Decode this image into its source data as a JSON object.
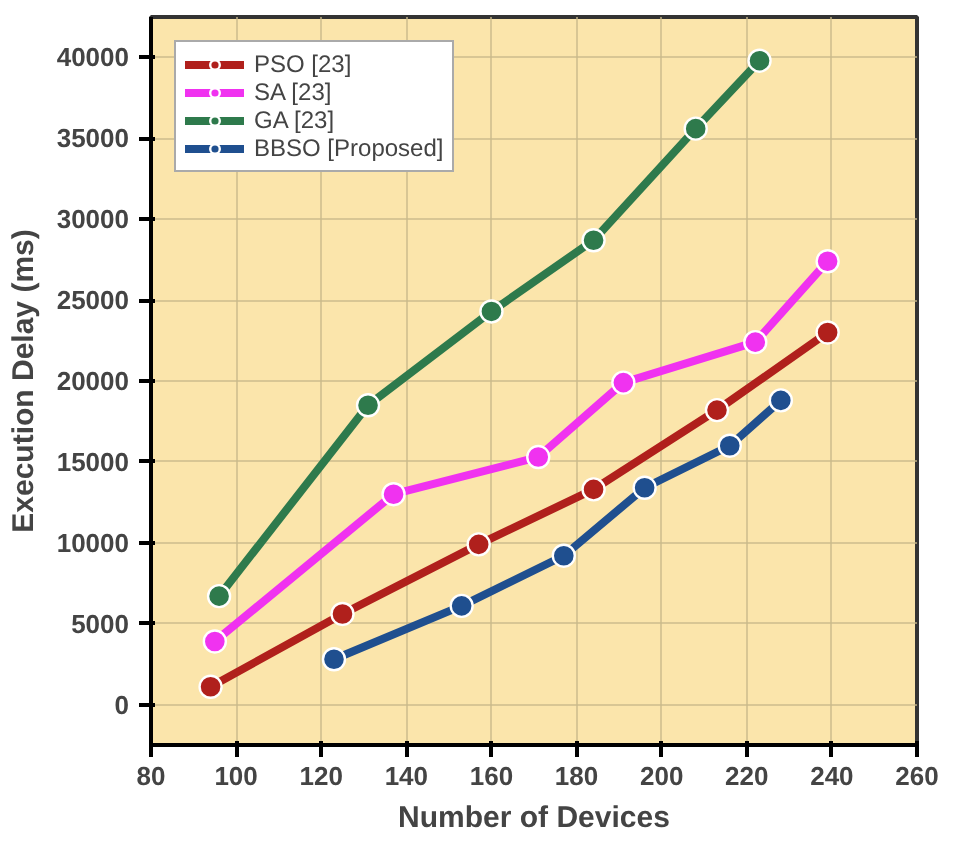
{
  "chart_data": {
    "type": "line",
    "xlabel": "Number of Devices",
    "ylabel": "Execution Delay (ms)",
    "xlim": [
      80,
      260
    ],
    "xticks": [
      80,
      100,
      120,
      140,
      160,
      180,
      200,
      220,
      240,
      260
    ],
    "ylim": [
      -2500,
      42500
    ],
    "yticks": [
      0,
      5000,
      10000,
      15000,
      20000,
      25000,
      30000,
      35000,
      40000
    ],
    "grid": true,
    "legend": "top left",
    "marker": "circle",
    "line_style": "solid",
    "series": [
      {
        "name": "PSO [23]",
        "color": "#b0201c",
        "x": [
          94,
          125,
          157,
          184,
          213,
          239
        ],
        "values": [
          1100,
          5600,
          9900,
          13300,
          18200,
          23000
        ]
      },
      {
        "name": "SA [23]",
        "color": "#f032f0",
        "x": [
          95,
          137,
          171,
          191,
          222,
          239
        ],
        "values": [
          3900,
          13000,
          15300,
          19900,
          22400,
          27400
        ]
      },
      {
        "name": "GA [23]",
        "color": "#2e7a4c",
        "x": [
          96,
          131,
          160,
          184,
          208,
          223
        ],
        "values": [
          6700,
          18500,
          24300,
          28700,
          35600,
          39800
        ]
      },
      {
        "name": "BBSO [Proposed]",
        "color": "#1f4f8f",
        "x": [
          123,
          153,
          177,
          196,
          216,
          228
        ],
        "values": [
          2800,
          6100,
          9200,
          13400,
          16000,
          18800
        ]
      }
    ]
  }
}
